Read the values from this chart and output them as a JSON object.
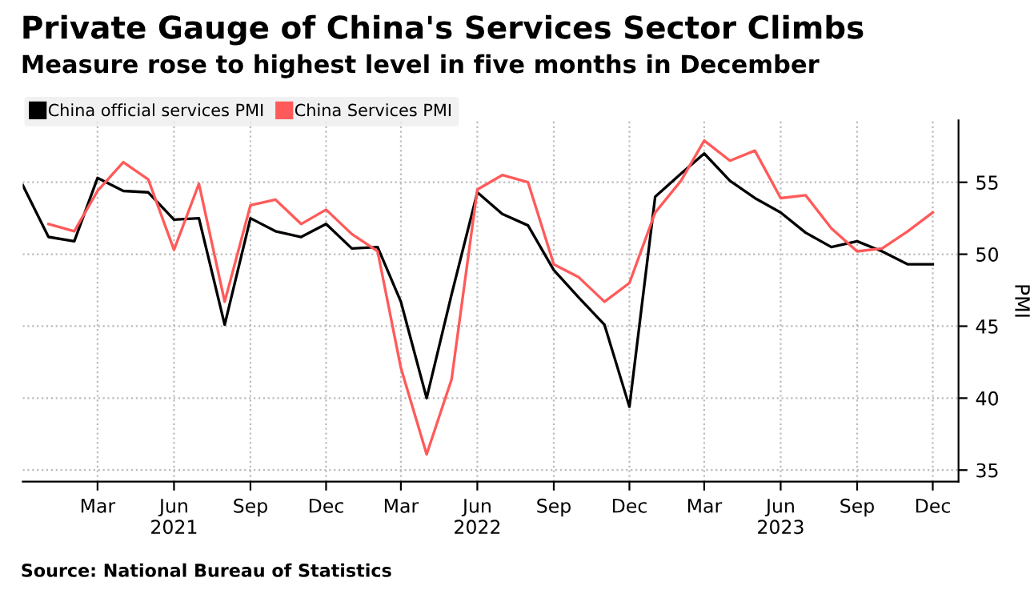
{
  "chart_data": {
    "type": "line",
    "title": "Private Gauge of China's Services Sector Climbs",
    "subtitle": "Measure rose to highest level in five months in December",
    "ylabel": "PMI",
    "x": [
      "2020-12",
      "2021-01",
      "2021-02",
      "2021-03",
      "2021-04",
      "2021-05",
      "2021-06",
      "2021-07",
      "2021-08",
      "2021-09",
      "2021-10",
      "2021-11",
      "2021-12",
      "2022-01",
      "2022-02",
      "2022-03",
      "2022-04",
      "2022-05",
      "2022-06",
      "2022-07",
      "2022-08",
      "2022-09",
      "2022-10",
      "2022-11",
      "2022-12",
      "2023-01",
      "2023-02",
      "2023-03",
      "2023-04",
      "2023-05",
      "2023-06",
      "2023-07",
      "2023-08",
      "2023-09",
      "2023-10",
      "2023-11",
      "2023-12"
    ],
    "series": [
      {
        "name": "China official services PMI",
        "color": "#000000",
        "values": [
          54.8,
          51.2,
          50.9,
          55.3,
          54.4,
          54.3,
          52.4,
          52.5,
          45.1,
          52.5,
          51.6,
          51.2,
          52.1,
          50.4,
          50.5,
          46.7,
          40.0,
          47.2,
          54.3,
          52.8,
          52.0,
          48.9,
          47.0,
          45.1,
          39.4,
          54.0,
          55.6,
          57.0,
          55.1,
          53.9,
          52.9,
          51.5,
          50.5,
          50.9,
          50.2,
          49.3,
          49.3
        ]
      },
      {
        "name": "China Services PMI",
        "color": "#ff5a5a",
        "values": [
          null,
          52.1,
          51.6,
          54.4,
          56.4,
          55.2,
          50.3,
          54.9,
          46.7,
          53.4,
          53.8,
          52.1,
          53.1,
          51.4,
          50.2,
          42.1,
          36.1,
          41.3,
          54.5,
          55.5,
          55.0,
          49.3,
          48.4,
          46.7,
          48.0,
          52.9,
          55.1,
          57.9,
          56.5,
          57.2,
          53.9,
          54.1,
          51.8,
          50.2,
          50.4,
          51.6,
          52.9
        ]
      }
    ],
    "xlim": [
      "2020-12",
      "2024-01"
    ],
    "xticks": [
      {
        "value": "2021-03",
        "label": "Mar"
      },
      {
        "value": "2021-06",
        "label": "Jun\n2021"
      },
      {
        "value": "2021-09",
        "label": "Sep"
      },
      {
        "value": "2021-12",
        "label": "Dec"
      },
      {
        "value": "2022-03",
        "label": "Mar"
      },
      {
        "value": "2022-06",
        "label": "Jun\n2022"
      },
      {
        "value": "2022-09",
        "label": "Sep"
      },
      {
        "value": "2022-12",
        "label": "Dec"
      },
      {
        "value": "2023-03",
        "label": "Mar"
      },
      {
        "value": "2023-06",
        "label": "Jun\n2023"
      },
      {
        "value": "2023-09",
        "label": "Sep"
      },
      {
        "value": "2023-12",
        "label": "Dec"
      }
    ],
    "ylim": [
      34.2,
      59.3
    ],
    "yticks": [
      35,
      40,
      45,
      50,
      55
    ],
    "grid": true,
    "legend": "top left",
    "marker": "none",
    "line_style": "solid",
    "annotations": [
      "Source: National Bureau of Statistics"
    ]
  }
}
